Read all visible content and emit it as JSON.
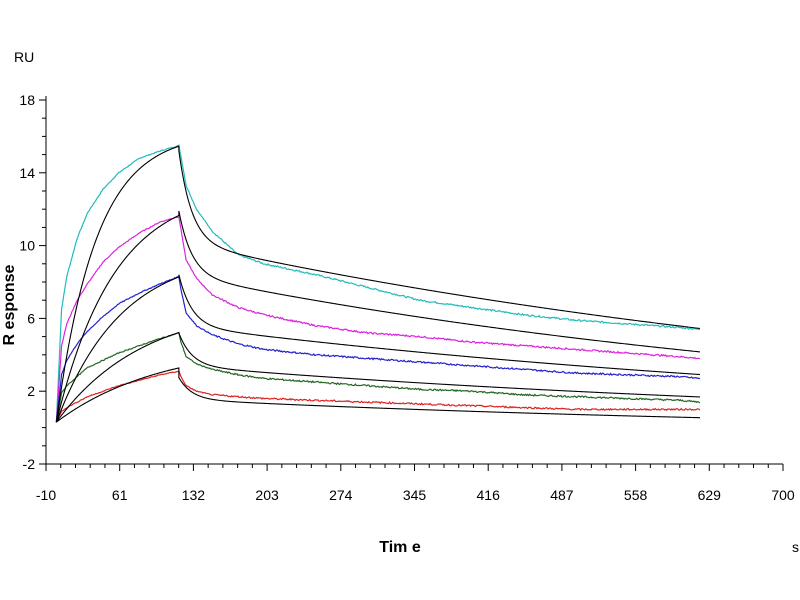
{
  "chart_data": {
    "type": "line",
    "xlabel": "Tim e",
    "xunit": "s",
    "ylabel": "R esponse",
    "yunit": "RU",
    "xlim": [
      -10,
      700
    ],
    "ylim": [
      -2,
      18
    ],
    "xticks": [
      -10,
      61,
      132,
      203,
      274,
      345,
      416,
      487,
      558,
      629,
      700
    ],
    "yticks": [
      -2,
      2,
      6,
      10,
      14,
      18
    ],
    "grid": false,
    "legend": "none",
    "association_end": 118,
    "dissociation_end": 620,
    "series": [
      {
        "color": "#22bbbb",
        "points": [
          [
            0,
            0.3
          ],
          [
            5,
            6.5
          ],
          [
            10,
            8.3
          ],
          [
            20,
            10.4
          ],
          [
            30,
            11.8
          ],
          [
            45,
            13.1
          ],
          [
            60,
            14.0
          ],
          [
            80,
            14.8
          ],
          [
            100,
            15.2
          ],
          [
            118,
            15.5
          ],
          [
            120,
            14.9
          ],
          [
            125,
            13.3
          ],
          [
            135,
            12.0
          ],
          [
            150,
            10.8
          ],
          [
            175,
            9.5
          ],
          [
            200,
            9.0
          ],
          [
            250,
            8.4
          ],
          [
            300,
            7.7
          ],
          [
            350,
            7.0
          ],
          [
            400,
            6.6
          ],
          [
            450,
            6.2
          ],
          [
            500,
            5.9
          ],
          [
            550,
            5.7
          ],
          [
            600,
            5.5
          ],
          [
            620,
            5.4
          ]
        ]
      },
      {
        "color": "#dd22dd",
        "points": [
          [
            0,
            0.3
          ],
          [
            5,
            4.5
          ],
          [
            10,
            5.7
          ],
          [
            20,
            7.0
          ],
          [
            30,
            7.9
          ],
          [
            45,
            9.1
          ],
          [
            60,
            9.9
          ],
          [
            80,
            10.7
          ],
          [
            100,
            11.3
          ],
          [
            118,
            11.6
          ],
          [
            120,
            10.9
          ],
          [
            125,
            9.2
          ],
          [
            135,
            8.2
          ],
          [
            150,
            7.3
          ],
          [
            175,
            6.6
          ],
          [
            200,
            6.2
          ],
          [
            250,
            5.6
          ],
          [
            300,
            5.2
          ],
          [
            350,
            5.0
          ],
          [
            400,
            4.7
          ],
          [
            450,
            4.5
          ],
          [
            500,
            4.3
          ],
          [
            550,
            4.1
          ],
          [
            600,
            3.9
          ],
          [
            620,
            3.8
          ]
        ]
      },
      {
        "color": "#2222cc",
        "points": [
          [
            0,
            0.3
          ],
          [
            5,
            2.9
          ],
          [
            10,
            3.7
          ],
          [
            20,
            4.6
          ],
          [
            30,
            5.3
          ],
          [
            45,
            6.1
          ],
          [
            60,
            6.8
          ],
          [
            80,
            7.4
          ],
          [
            100,
            7.9
          ],
          [
            118,
            8.3
          ],
          [
            120,
            7.6
          ],
          [
            125,
            6.3
          ],
          [
            135,
            5.6
          ],
          [
            150,
            5.1
          ],
          [
            175,
            4.6
          ],
          [
            200,
            4.3
          ],
          [
            250,
            4.0
          ],
          [
            300,
            3.8
          ],
          [
            350,
            3.6
          ],
          [
            400,
            3.4
          ],
          [
            450,
            3.2
          ],
          [
            500,
            3.0
          ],
          [
            550,
            2.9
          ],
          [
            600,
            2.8
          ],
          [
            620,
            2.7
          ]
        ]
      },
      {
        "color": "#226622",
        "points": [
          [
            0,
            0.3
          ],
          [
            5,
            1.9
          ],
          [
            10,
            2.3
          ],
          [
            20,
            2.8
          ],
          [
            30,
            3.3
          ],
          [
            45,
            3.7
          ],
          [
            60,
            4.1
          ],
          [
            80,
            4.5
          ],
          [
            100,
            4.9
          ],
          [
            118,
            5.2
          ],
          [
            120,
            4.7
          ],
          [
            125,
            3.9
          ],
          [
            135,
            3.5
          ],
          [
            150,
            3.2
          ],
          [
            175,
            2.9
          ],
          [
            200,
            2.7
          ],
          [
            250,
            2.5
          ],
          [
            300,
            2.3
          ],
          [
            350,
            2.1
          ],
          [
            400,
            2.0
          ],
          [
            450,
            1.8
          ],
          [
            500,
            1.7
          ],
          [
            550,
            1.6
          ],
          [
            600,
            1.5
          ],
          [
            620,
            1.4
          ]
        ]
      },
      {
        "color": "#dd2222",
        "points": [
          [
            0,
            0.3
          ],
          [
            5,
            0.9
          ],
          [
            10,
            1.1
          ],
          [
            20,
            1.4
          ],
          [
            30,
            1.7
          ],
          [
            45,
            2.0
          ],
          [
            60,
            2.3
          ],
          [
            80,
            2.6
          ],
          [
            100,
            2.9
          ],
          [
            118,
            3.1
          ],
          [
            120,
            2.8
          ],
          [
            125,
            2.3
          ],
          [
            135,
            2.0
          ],
          [
            150,
            1.8
          ],
          [
            175,
            1.7
          ],
          [
            200,
            1.6
          ],
          [
            250,
            1.5
          ],
          [
            300,
            1.4
          ],
          [
            350,
            1.3
          ],
          [
            400,
            1.2
          ],
          [
            450,
            1.1
          ],
          [
            500,
            1.0
          ],
          [
            550,
            1.0
          ],
          [
            600,
            1.0
          ],
          [
            620,
            1.0
          ]
        ]
      }
    ],
    "fits": [
      {
        "color": "#000000",
        "assoc_plateau": 16.2,
        "assoc_k": 0.026,
        "assoc_start": 0.3,
        "diss_fast": 5.0,
        "diss_fast_k": 0.08,
        "diss_slow": 10.2,
        "diss_slow_k": 0.00125
      },
      {
        "color": "#000000",
        "assoc_plateau": 13.2,
        "assoc_k": 0.018,
        "assoc_start": 0.3,
        "diss_fast": 3.5,
        "diss_fast_k": 0.08,
        "diss_slow": 8.4,
        "diss_slow_k": 0.0014
      },
      {
        "color": "#000000",
        "assoc_plateau": 9.7,
        "assoc_k": 0.016,
        "assoc_start": 0.3,
        "diss_fast": 2.8,
        "diss_fast_k": 0.08,
        "diss_slow": 5.6,
        "diss_slow_k": 0.0013
      },
      {
        "color": "#000000",
        "assoc_plateau": 6.8,
        "assoc_k": 0.012,
        "assoc_start": 0.3,
        "diss_fast": 1.8,
        "diss_fast_k": 0.08,
        "diss_slow": 3.4,
        "diss_slow_k": 0.0014
      },
      {
        "color": "#000000",
        "assoc_plateau": 4.6,
        "assoc_k": 0.01,
        "assoc_start": 0.3,
        "diss_fast": 1.2,
        "diss_fast_k": 0.08,
        "diss_slow": 1.9,
        "diss_slow_k": 0.0015
      }
    ]
  }
}
